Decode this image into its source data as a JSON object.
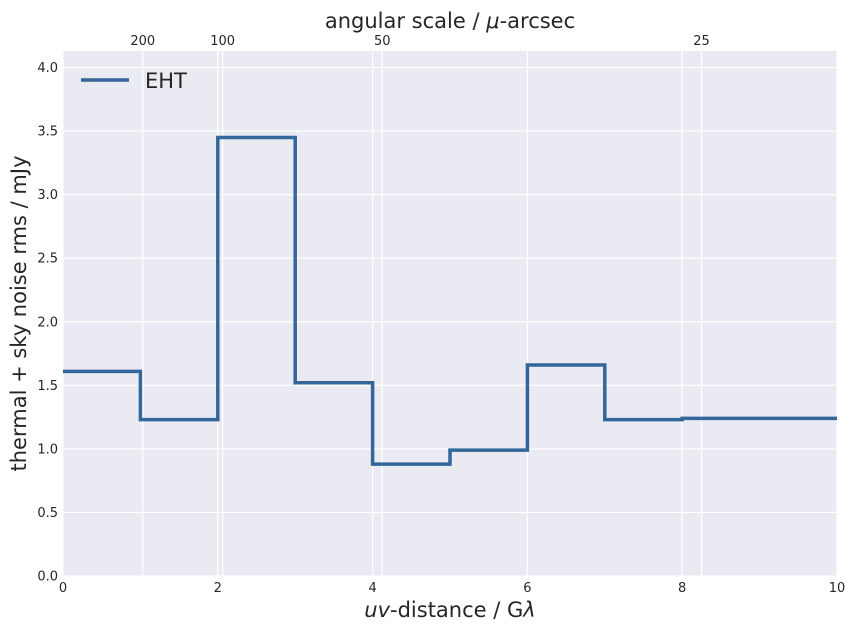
{
  "chart_data": {
    "type": "line",
    "drawstyle": "steps-post",
    "xlabel": "uv-distance / Gλ",
    "xlabel_italic": "uv",
    "xlabel_rest": "-distance / G",
    "xlabel_lambda": "λ",
    "ylabel": "thermal + sky noise rms / mJy",
    "top_label": "angular scale / μ-arcsec",
    "top_label_prefix": "angular scale / ",
    "top_label_mu": "μ",
    "top_label_suffix": "-arcsec",
    "xlim": [
      0,
      10
    ],
    "ylim": [
      0,
      4.13
    ],
    "grid": true,
    "legend_position": "upper left",
    "x_ticks": [
      {
        "value": 0,
        "label": "0"
      },
      {
        "value": 2,
        "label": "2"
      },
      {
        "value": 4,
        "label": "4"
      },
      {
        "value": 6,
        "label": "6"
      },
      {
        "value": 8,
        "label": "8"
      },
      {
        "value": 10,
        "label": "10"
      }
    ],
    "y_ticks": [
      {
        "value": 0.0,
        "label": "0.0"
      },
      {
        "value": 0.5,
        "label": "0.5"
      },
      {
        "value": 1.0,
        "label": "1.0"
      },
      {
        "value": 1.5,
        "label": "1.5"
      },
      {
        "value": 2.0,
        "label": "2.0"
      },
      {
        "value": 2.5,
        "label": "2.5"
      },
      {
        "value": 3.0,
        "label": "3.0"
      },
      {
        "value": 3.5,
        "label": "3.5"
      },
      {
        "value": 4.0,
        "label": "4.0"
      }
    ],
    "top_ticks": [
      {
        "value": 1.031,
        "label": "200"
      },
      {
        "value": 2.063,
        "label": "100"
      },
      {
        "value": 4.125,
        "label": "50"
      },
      {
        "value": 8.25,
        "label": "25"
      }
    ],
    "series": [
      {
        "name": "EHT",
        "color": "#336699",
        "x": [
          0,
          1,
          2,
          3,
          4,
          5,
          6,
          7,
          8,
          9
        ],
        "y": [
          1.61,
          1.23,
          3.45,
          1.52,
          0.88,
          0.99,
          1.66,
          1.23,
          1.24,
          1.24
        ]
      }
    ],
    "colors": {
      "plot_background": "#eaeaf2",
      "grid": "#ffffff",
      "text": "#262626"
    }
  }
}
